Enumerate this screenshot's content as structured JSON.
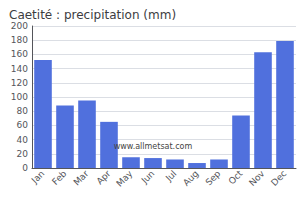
{
  "chart_data": {
    "type": "bar",
    "title": "Caetité : precipitation (mm)",
    "categories": [
      "Jan",
      "Feb",
      "Mar",
      "Apr",
      "May",
      "Jun",
      "Jul",
      "Aug",
      "Sep",
      "Oct",
      "Nov",
      "Dec"
    ],
    "values": [
      152,
      88,
      95,
      65,
      15,
      14,
      12,
      7,
      12,
      74,
      163,
      179
    ],
    "annotation": "www.allmetsat.com",
    "ylim": [
      0,
      200
    ],
    "yticks": [
      0,
      20,
      40,
      60,
      80,
      100,
      120,
      140,
      160,
      180,
      200
    ],
    "grid": true
  }
}
